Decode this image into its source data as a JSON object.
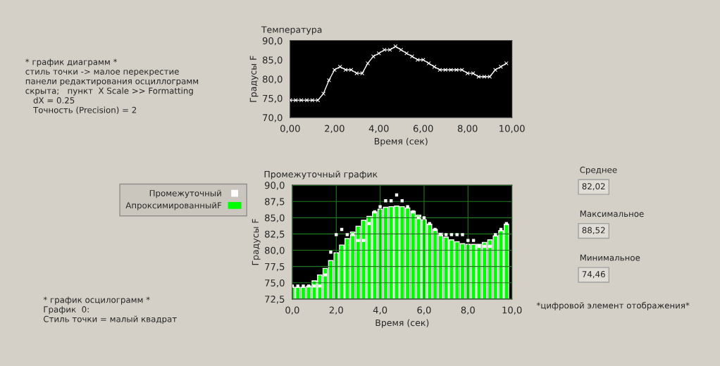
{
  "chart_data": [
    {
      "type": "line",
      "title": "Температура",
      "xlabel": "Время (сек)",
      "ylabel": "Градусы F",
      "x": [
        0,
        0.25,
        0.5,
        0.75,
        1.0,
        1.25,
        1.5,
        1.75,
        2.0,
        2.25,
        2.5,
        2.75,
        3.0,
        3.25,
        3.5,
        3.75,
        4.0,
        4.25,
        4.5,
        4.75,
        5.0,
        5.25,
        5.5,
        5.75,
        6.0,
        6.25,
        6.5,
        6.75,
        7.0,
        7.25,
        7.5,
        7.75,
        8.0,
        8.25,
        8.5,
        8.75,
        9.0,
        9.25,
        9.5,
        9.75
      ],
      "series": [
        {
          "color": "#ffffff",
          "marker": "cross",
          "values": [
            74.5,
            74.5,
            74.5,
            74.5,
            74.5,
            74.5,
            76.2,
            79.7,
            82.4,
            83.2,
            82.4,
            82.4,
            81.5,
            81.5,
            84.1,
            85.9,
            86.7,
            87.6,
            87.6,
            88.5,
            87.6,
            86.7,
            85.9,
            85.0,
            85.0,
            84.1,
            83.2,
            82.4,
            82.4,
            82.4,
            82.4,
            82.4,
            81.5,
            81.5,
            80.6,
            80.6,
            80.6,
            82.4,
            83.2,
            84.1
          ]
        }
      ],
      "xlim": [
        0,
        10
      ],
      "xticks": [
        {
          "value": 0,
          "label": "0,00"
        },
        {
          "value": 2,
          "label": "2,00"
        },
        {
          "value": 4,
          "label": "4,00"
        },
        {
          "value": 6,
          "label": "6,00"
        },
        {
          "value": 8,
          "label": "8,00"
        },
        {
          "value": 10,
          "label": "10,00"
        }
      ],
      "ylim": [
        70,
        90
      ],
      "yticks": [
        {
          "value": 70,
          "label": "70,0"
        },
        {
          "value": 75,
          "label": "75,0"
        },
        {
          "value": 80,
          "label": "80,0"
        },
        {
          "value": 85,
          "label": "85,0"
        },
        {
          "value": 90,
          "label": "90,0"
        }
      ],
      "annotations": [
        "* график диаграмм *\nстиль точки -> малое перекрестие\nпанели редактирования осциллограмм\nскрыта;   пункт  X Scale >> Formatting\n   dX = 0.25\n   Точность (Precision) = 2"
      ]
    },
    {
      "type": "bar",
      "title": "Промежуточный график",
      "xlabel": "Время (сек)",
      "ylabel": "Градусы F",
      "x": [
        0,
        0.25,
        0.5,
        0.75,
        1.0,
        1.25,
        1.5,
        1.75,
        2.0,
        2.25,
        2.5,
        2.75,
        3.0,
        3.25,
        3.5,
        3.75,
        4.0,
        4.25,
        4.5,
        4.75,
        5.0,
        5.25,
        5.5,
        5.75,
        6.0,
        6.25,
        6.5,
        6.75,
        7.0,
        7.25,
        7.5,
        7.75,
        8.0,
        8.25,
        8.5,
        8.75,
        9.0,
        9.25,
        9.5,
        9.75
      ],
      "series": [
        {
          "name": "Промежуточный",
          "type": "scatter",
          "marker": "square",
          "color": "#ffffff",
          "values": [
            74.5,
            74.5,
            74.5,
            74.5,
            74.5,
            74.5,
            76.2,
            79.7,
            82.4,
            83.2,
            82.4,
            82.4,
            81.5,
            81.5,
            84.1,
            85.9,
            86.7,
            87.6,
            87.6,
            88.5,
            87.6,
            86.7,
            85.9,
            85.0,
            85.0,
            84.1,
            83.2,
            82.4,
            82.4,
            82.4,
            82.4,
            82.4,
            81.5,
            81.5,
            80.6,
            80.6,
            80.6,
            82.4,
            83.2,
            84.1
          ]
        },
        {
          "name": "АпроксимированныйF",
          "type": "bar",
          "color": "#00ff00",
          "values": [
            74.3,
            74.3,
            74.3,
            74.5,
            75.3,
            76.2,
            77.2,
            78.4,
            79.6,
            80.8,
            81.8,
            82.8,
            83.7,
            84.6,
            85.2,
            85.9,
            86.3,
            86.6,
            86.7,
            86.8,
            86.7,
            86.5,
            86.0,
            85.4,
            84.7,
            84.0,
            83.2,
            82.6,
            82.0,
            81.6,
            81.3,
            81.0,
            80.9,
            80.9,
            80.9,
            81.2,
            81.6,
            82.2,
            83.0,
            84.0
          ]
        }
      ],
      "xlim": [
        0,
        10
      ],
      "xticks": [
        {
          "value": 0,
          "label": "0,0"
        },
        {
          "value": 2,
          "label": "2,0"
        },
        {
          "value": 4,
          "label": "4,0"
        },
        {
          "value": 6,
          "label": "6,0"
        },
        {
          "value": 8,
          "label": "8,0"
        },
        {
          "value": 10,
          "label": "10,0"
        }
      ],
      "ylim": [
        72.5,
        90
      ],
      "yticks": [
        {
          "value": 72.5,
          "label": "72,5"
        },
        {
          "value": 75,
          "label": "75,0"
        },
        {
          "value": 77.5,
          "label": "77,5"
        },
        {
          "value": 80,
          "label": "80,0"
        },
        {
          "value": 82.5,
          "label": "82,5"
        },
        {
          "value": 85,
          "label": "85,0"
        },
        {
          "value": 87.5,
          "label": "87,5"
        },
        {
          "value": 90,
          "label": "90,0"
        }
      ],
      "grid": true,
      "legend": "left",
      "annotations": [
        "* график осцилограмм *\nГрафик  0:\nСтиль точки = малый квадрат",
        "Среднее",
        "82,02",
        "Максимальное",
        "88,52",
        "Минимальное",
        "74,46",
        "*цифровой элемент отображения*"
      ]
    }
  ]
}
